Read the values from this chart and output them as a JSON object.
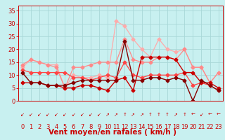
{
  "background_color": "#c8f0f0",
  "grid_color": "#a8d8d8",
  "xlabel": "Vent moyen/en rafales ( km/h )",
  "tick_color": "#cc0000",
  "yticks": [
    0,
    5,
    10,
    15,
    20,
    25,
    30,
    35
  ],
  "xticks": [
    0,
    1,
    2,
    3,
    4,
    5,
    6,
    7,
    8,
    9,
    10,
    11,
    12,
    13,
    14,
    15,
    16,
    17,
    18,
    19,
    20,
    21,
    22,
    23
  ],
  "xlim": [
    -0.5,
    23.5
  ],
  "ylim": [
    0,
    37
  ],
  "series": [
    {
      "x": [
        0,
        1,
        2,
        3,
        4,
        5,
        6,
        7,
        8,
        9,
        10,
        11,
        12,
        13,
        14,
        15,
        16,
        17,
        18,
        19,
        20,
        21,
        22,
        23
      ],
      "y": [
        13,
        16,
        15,
        14,
        14,
        5,
        10,
        9,
        9,
        10,
        9,
        31,
        29,
        24,
        20,
        17,
        24,
        20,
        19,
        20,
        13,
        13,
        7,
        11
      ],
      "color": "#ffaaaa",
      "lw": 0.9,
      "marker": "D",
      "ms": 2.5
    },
    {
      "x": [
        0,
        1,
        2,
        3,
        4,
        5,
        6,
        7,
        8,
        9,
        10,
        11,
        12,
        13,
        14,
        15,
        16,
        17,
        18,
        19,
        20,
        21,
        22,
        23
      ],
      "y": [
        14,
        16,
        15,
        14,
        13,
        5,
        13,
        13,
        14,
        15,
        15,
        15,
        24,
        16,
        15,
        15,
        17,
        17,
        16,
        20,
        13,
        13,
        7,
        11
      ],
      "color": "#ff8888",
      "lw": 0.9,
      "marker": "D",
      "ms": 2.5
    },
    {
      "x": [
        0,
        1,
        2,
        3,
        4,
        5,
        6,
        7,
        8,
        9,
        10,
        11,
        12,
        13,
        14,
        15,
        16,
        17,
        18,
        19,
        20,
        21,
        22,
        23
      ],
      "y": [
        12,
        11,
        11,
        11,
        11,
        11,
        9,
        9,
        8,
        9,
        10,
        9,
        15,
        10,
        9,
        10,
        10,
        10,
        10,
        11,
        6,
        7,
        6,
        4
      ],
      "color": "#ff4444",
      "lw": 0.9,
      "marker": "D",
      "ms": 2.5
    },
    {
      "x": [
        0,
        1,
        2,
        3,
        4,
        5,
        6,
        7,
        8,
        9,
        10,
        11,
        12,
        13,
        14,
        15,
        16,
        17,
        18,
        19,
        20,
        21,
        22,
        23
      ],
      "y": [
        7,
        7,
        7,
        6,
        6,
        5,
        5,
        6,
        6,
        5,
        4,
        8,
        9,
        4,
        17,
        17,
        17,
        17,
        16,
        11,
        11,
        7,
        7,
        5
      ],
      "color": "#cc0000",
      "lw": 1.0,
      "marker": "D",
      "ms": 2.5
    },
    {
      "x": [
        0,
        1,
        2,
        3,
        4,
        5,
        6,
        7,
        8,
        9,
        10,
        11,
        12,
        13,
        14,
        15,
        16,
        17,
        18,
        19,
        20,
        21,
        22,
        23
      ],
      "y": [
        11,
        7,
        7,
        6,
        6,
        6,
        7,
        8,
        8,
        8,
        8,
        8,
        23,
        8,
        8,
        9,
        9,
        8,
        9,
        8,
        0,
        8,
        6,
        4
      ],
      "color": "#880000",
      "lw": 1.0,
      "marker": "D",
      "ms": 2.5
    }
  ],
  "arrows": [
    "↙",
    "↙",
    "↙",
    "↙",
    "↙",
    "↙",
    "↙",
    "↙",
    "↙",
    "↙",
    "↗",
    "↗",
    "↑",
    "↗",
    "↗",
    "↑",
    "↑",
    "↑",
    "↗",
    "↑",
    "←",
    "↙",
    "←",
    "←"
  ],
  "tick_fontsize": 6,
  "label_fontsize": 7.5
}
